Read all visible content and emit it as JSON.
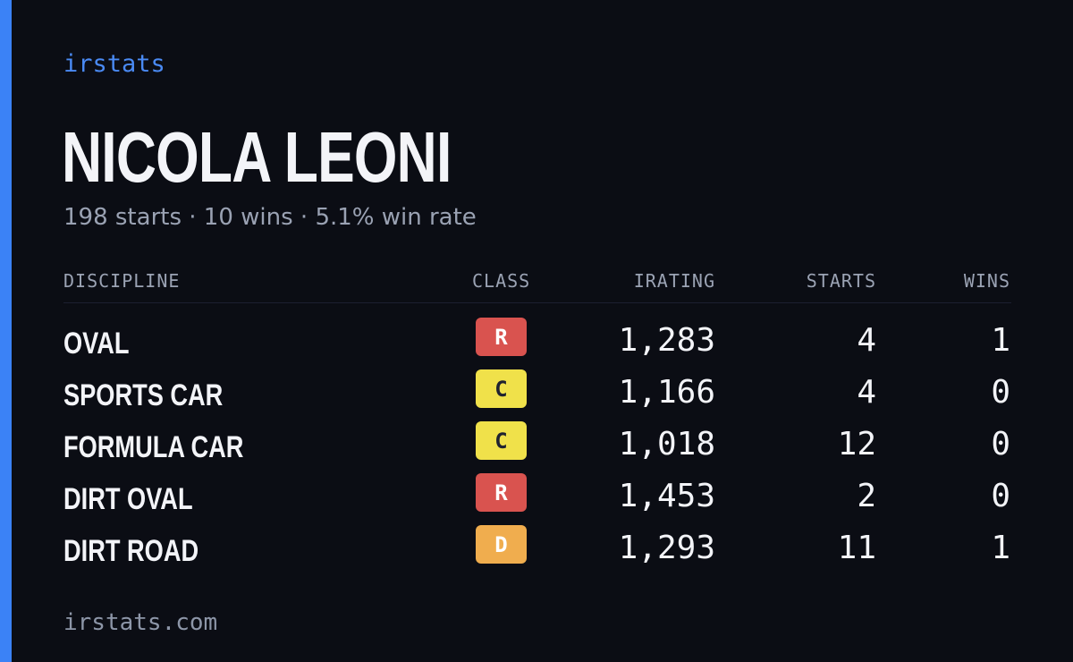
{
  "brand": "irstats",
  "player": {
    "name": "NICOLA LEONI",
    "summary": "198 starts · 10 wins · 5.1% win rate"
  },
  "table": {
    "headers": {
      "discipline": "DISCIPLINE",
      "class": "CLASS",
      "irating": "IRATING",
      "starts": "STARTS",
      "wins": "WINS"
    },
    "rows": [
      {
        "discipline": "OVAL",
        "class": "R",
        "irating": "1,283",
        "starts": "4",
        "wins": "1"
      },
      {
        "discipline": "SPORTS CAR",
        "class": "C",
        "irating": "1,166",
        "starts": "4",
        "wins": "0"
      },
      {
        "discipline": "FORMULA CAR",
        "class": "C",
        "irating": "1,018",
        "starts": "12",
        "wins": "0"
      },
      {
        "discipline": "DIRT OVAL",
        "class": "R",
        "irating": "1,453",
        "starts": "2",
        "wins": "0"
      },
      {
        "discipline": "DIRT ROAD",
        "class": "D",
        "irating": "1,293",
        "starts": "11",
        "wins": "1"
      }
    ]
  },
  "class_colors": {
    "R": {
      "bg": "#d9534f",
      "fg": "#ffffff"
    },
    "C": {
      "bg": "#f0e14a",
      "fg": "#1f2230"
    },
    "D": {
      "bg": "#f0ad4e",
      "fg": "#ffffff"
    }
  },
  "colors": {
    "accent": "#3b82f6",
    "background": "#0b0d14"
  },
  "footer": "irstats.com"
}
